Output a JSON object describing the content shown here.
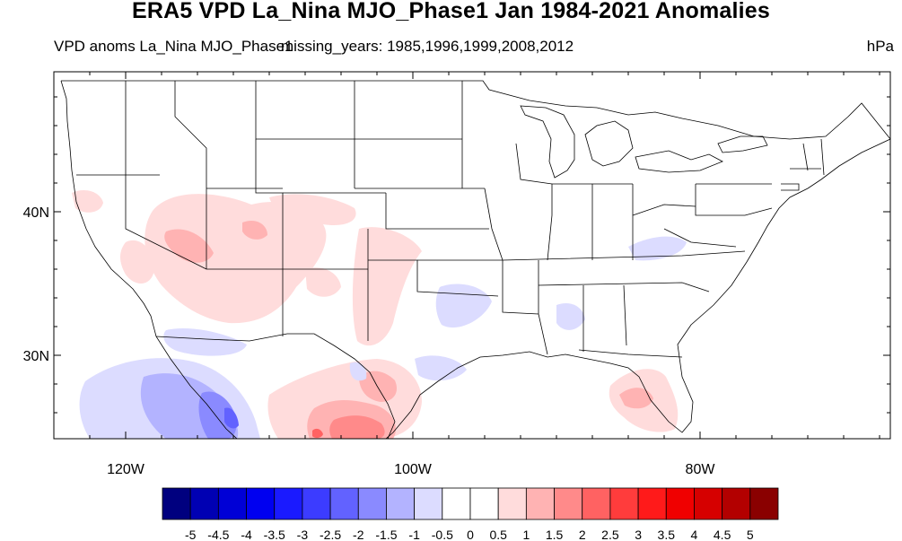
{
  "title": "ERA5 VPD La_Nina MJO_Phase1 Jan 1984-2021 Anomalies",
  "subtitle_left": "VPD anoms La_Nina MJO_Phase1",
  "subtitle_middle": "missing_years: 1985,1996,1999,2008,2012",
  "units": "hPa",
  "map": {
    "lon_range": [
      -125,
      -67
    ],
    "lat_range": [
      24,
      50
    ],
    "lat_labels": [
      "40N",
      "30N"
    ],
    "lon_labels": [
      "120W",
      "100W",
      "80W"
    ]
  },
  "colorbar": {
    "colors": [
      "#00007f",
      "#0000b3",
      "#0000d6",
      "#0000f0",
      "#1a1aff",
      "#3c3cff",
      "#6262ff",
      "#8a8aff",
      "#b3b3ff",
      "#dcdcff",
      "#ffffff",
      "#ffffff",
      "#ffdcdc",
      "#ffb3b3",
      "#ff8a8a",
      "#ff6262",
      "#ff3c3c",
      "#ff1a1a",
      "#f00000",
      "#d60000",
      "#b30000",
      "#8a0000"
    ],
    "labels": [
      "-5",
      "-4.5",
      "-4",
      "-3.5",
      "-3",
      "-2.5",
      "-2",
      "-1.5",
      "-1",
      "-0.5",
      "0",
      "0.5",
      "1",
      "1.5",
      "2",
      "2.5",
      "3",
      "3.5",
      "4",
      "4.5",
      "5"
    ]
  }
}
